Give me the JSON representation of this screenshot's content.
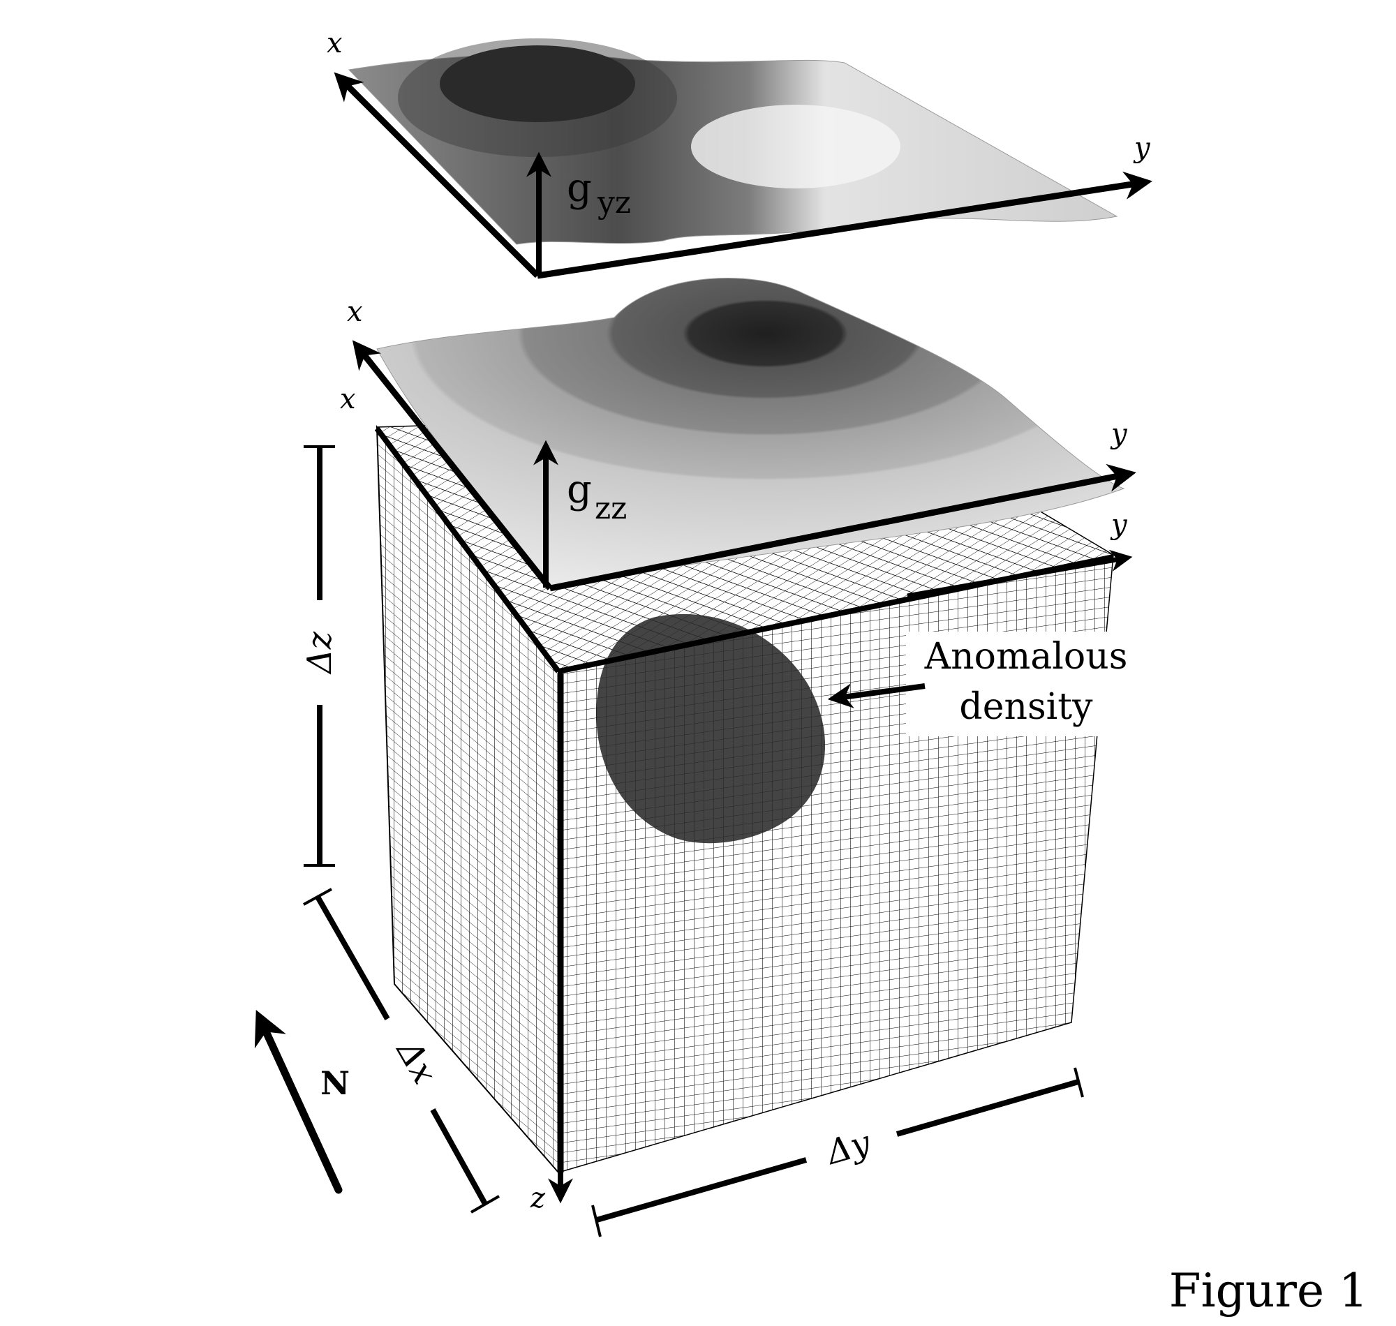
{
  "surfaces": {
    "gyz": {
      "x_axis": "x",
      "y_axis": "y",
      "g_letter": "g",
      "g_sub": "yz"
    },
    "gzz": {
      "x_axis": "x",
      "y_axis": "y",
      "g_letter": "g",
      "g_sub": "zz"
    }
  },
  "cube": {
    "x_axis": "x",
    "y_axis": "y",
    "z_axis": "z",
    "dz": "Δz",
    "dx": "Δx",
    "dy": "Δy"
  },
  "north": "N",
  "anomaly": {
    "line1": "Anomalous",
    "line2": "density"
  },
  "figure_label": "Figure 1",
  "colors": {
    "ink": "#000000",
    "anomaly_body": "#2a2a2a",
    "surface_dark": "#2b2b2b",
    "surface_light": "#e6e6e6"
  }
}
